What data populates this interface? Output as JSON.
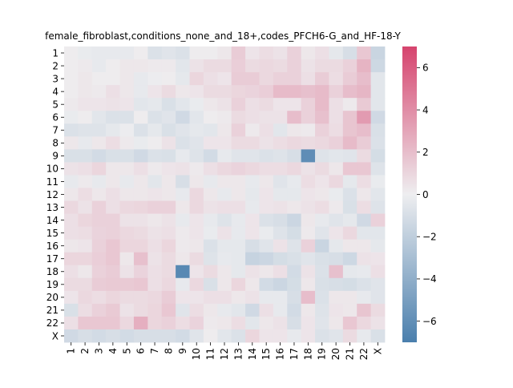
{
  "chart_data": {
    "type": "heatmap",
    "title": "female_fibroblast,conditions_none_and_18+,codes_PFCH6-G_and_HF-18-Y",
    "xlabel": "",
    "ylabel": "",
    "x_categories": [
      "1",
      "2",
      "3",
      "4",
      "5",
      "6",
      "7",
      "8",
      "9",
      "10",
      "11",
      "12",
      "13",
      "14",
      "15",
      "16",
      "17",
      "18",
      "19",
      "20",
      "21",
      "22",
      "X"
    ],
    "y_categories": [
      "1",
      "2",
      "3",
      "4",
      "5",
      "6",
      "7",
      "8",
      "9",
      "10",
      "11",
      "12",
      "13",
      "14",
      "15",
      "16",
      "17",
      "18",
      "19",
      "20",
      "21",
      "22",
      "X"
    ],
    "colorbar": {
      "vmin": -7,
      "vmax": 7,
      "ticks": [
        6,
        4,
        2,
        0,
        -2,
        -4,
        -6
      ],
      "tick_labels": [
        "6",
        "4",
        "2",
        "0",
        "−2",
        "−4",
        "−6"
      ],
      "colors": {
        "negative": "#4a7fad",
        "neutral": "#eeeef0",
        "positive": "#d6446e"
      }
    },
    "values": [
      [
        0.1,
        -0.2,
        -0.3,
        -0.3,
        -0.3,
        0.1,
        -0.8,
        -0.6,
        -0.8,
        0.1,
        0.1,
        0.3,
        1.4,
        0.4,
        0.7,
        0.5,
        1.2,
        0.3,
        0.6,
        -0.4,
        -1.0,
        1.6,
        -1.6
      ],
      [
        0.1,
        0.2,
        -0.3,
        0.1,
        0.3,
        0.3,
        0.2,
        0.2,
        -0.5,
        0.5,
        0.8,
        0.8,
        1.3,
        0.8,
        0.9,
        0.8,
        1.2,
        0.5,
        0.8,
        0.8,
        1.2,
        2.4,
        -1.4
      ],
      [
        0.1,
        0.3,
        0.1,
        0.1,
        0.3,
        -0.3,
        -0.1,
        0.1,
        -0.4,
        1.0,
        0.6,
        0.4,
        1.4,
        1.4,
        0.9,
        1.2,
        1.2,
        0.6,
        1.4,
        0.7,
        1.4,
        2.0,
        -0.5
      ],
      [
        0.1,
        0.3,
        0.2,
        0.6,
        0.3,
        -0.3,
        0.4,
        0.8,
        0.3,
        0.4,
        0.8,
        0.8,
        1.0,
        1.1,
        1.3,
        2.1,
        2.1,
        1.9,
        2.1,
        1.2,
        2.0,
        2.3,
        -0.5
      ],
      [
        0.2,
        0.4,
        0.4,
        0.5,
        0.4,
        -0.5,
        -0.4,
        -0.9,
        -0.5,
        -0.2,
        0.3,
        0.5,
        1.2,
        0.6,
        0.8,
        0.4,
        0.4,
        1.2,
        2.1,
        0.6,
        0.2,
        1.5,
        -0.5
      ],
      [
        -0.2,
        0.1,
        -0.5,
        -0.8,
        -0.8,
        0.1,
        -0.8,
        -0.6,
        -1.3,
        -0.5,
        0.1,
        0.2,
        0.8,
        0.6,
        0.5,
        0.5,
        2.0,
        1.2,
        1.9,
        0.6,
        1.7,
        3.4,
        -1.3
      ],
      [
        -0.8,
        -0.7,
        -0.7,
        -0.4,
        -0.1,
        -0.8,
        -0.4,
        -0.9,
        -0.6,
        -0.4,
        -0.5,
        0.3,
        1.2,
        0.2,
        0.6,
        -0.5,
        0.3,
        0.2,
        1.2,
        0.7,
        1.7,
        2.0,
        -0.9
      ],
      [
        0.3,
        -0.3,
        0.3,
        0.7,
        0.2,
        -0.2,
        0.1,
        0.5,
        -0.8,
        -0.6,
        0.4,
        0.4,
        0.8,
        0.8,
        0.5,
        0.7,
        0.9,
        0.8,
        0.9,
        1.2,
        2.1,
        1.4,
        -0.8
      ],
      [
        -0.9,
        -0.9,
        -1.2,
        -0.9,
        -0.9,
        -1.3,
        -0.8,
        -0.9,
        -0.3,
        -0.7,
        -1.2,
        -0.3,
        -0.6,
        -0.6,
        -0.8,
        -0.7,
        -1.0,
        -6.1,
        -0.7,
        -0.5,
        -0.6,
        0.8,
        -1.1
      ],
      [
        0.5,
        0.6,
        1.0,
        0.3,
        0.3,
        0.6,
        0.2,
        0.4,
        0.5,
        0.2,
        0.6,
        0.9,
        1.1,
        0.9,
        0.7,
        0.7,
        0.9,
        0.5,
        0.8,
        0.3,
        1.6,
        1.6,
        -0.7
      ],
      [
        -0.3,
        0.2,
        -0.3,
        0.3,
        -0.3,
        0.3,
        -0.5,
        0.3,
        -1.0,
        0.3,
        -0.3,
        0.3,
        0.3,
        -0.3,
        0.3,
        -0.6,
        -0.3,
        0.7,
        0.4,
        0.9,
        -0.4,
        0.7,
        -0.2
      ],
      [
        0.3,
        0.7,
        0.3,
        0.6,
        0.3,
        0.3,
        0.4,
        0.3,
        -0.3,
        0.9,
        0.3,
        -0.3,
        0.3,
        -0.4,
        0.4,
        -0.4,
        -0.4,
        0.4,
        0.3,
        -0.2,
        -0.8,
        0.3,
        -0.5
      ],
      [
        0.9,
        0.5,
        1.2,
        0.6,
        0.9,
        1.0,
        1.2,
        1.2,
        0.3,
        0.9,
        0.5,
        0.6,
        0.6,
        -0.3,
        0.4,
        0.5,
        0.3,
        0.5,
        0.7,
        0.2,
        -0.9,
        0.7,
        -0.7
      ],
      [
        0.6,
        1.0,
        1.2,
        1.2,
        0.5,
        0.5,
        0.3,
        0.5,
        -0.3,
        0.4,
        -0.3,
        -0.7,
        -0.3,
        0.4,
        -0.8,
        -1.0,
        -1.5,
        0.3,
        -0.3,
        -0.6,
        -0.4,
        -1.3,
        1.2
      ],
      [
        0.6,
        0.7,
        1.1,
        1.2,
        0.9,
        0.8,
        0.5,
        0.6,
        0.2,
        0.4,
        -0.2,
        0.5,
        -0.3,
        0.4,
        -0.2,
        -0.7,
        -1.1,
        0.2,
        -0.6,
        0.4,
        0.9,
        -0.5,
        -0.5
      ],
      [
        0.3,
        0.4,
        1.2,
        1.6,
        1.0,
        1.0,
        0.6,
        1.0,
        0.2,
        0.3,
        -0.8,
        -0.4,
        -0.4,
        -1.0,
        -0.6,
        0.5,
        -0.7,
        1.2,
        -1.6,
        -0.4,
        0.3,
        0.3,
        -0.4
      ],
      [
        1.0,
        1.0,
        1.3,
        1.6,
        0.3,
        1.9,
        0.5,
        0.8,
        0.3,
        0.8,
        -0.7,
        -0.3,
        -0.4,
        -1.7,
        -1.5,
        -1.1,
        -0.9,
        -0.6,
        -0.9,
        -1.0,
        -1.4,
        0.5,
        0.4
      ],
      [
        0.6,
        0.3,
        1.2,
        1.4,
        0.5,
        1.1,
        0.6,
        0.8,
        -6.4,
        0.4,
        0.8,
        0.3,
        -0.4,
        0.5,
        0.3,
        0.6,
        -1.2,
        0.5,
        -0.8,
        1.9,
        -0.4,
        -0.3,
        0.6
      ],
      [
        0.8,
        0.8,
        1.4,
        1.5,
        1.5,
        1.6,
        0.6,
        0.9,
        -0.3,
        0.9,
        -0.9,
        0.3,
        1.0,
        0.3,
        -1.2,
        -1.5,
        -1.1,
        0.3,
        -0.9,
        -1.0,
        -1.1,
        -0.8,
        -0.6
      ],
      [
        0.4,
        0.9,
        0.7,
        1.0,
        0.8,
        0.8,
        0.9,
        1.4,
        0.4,
        0.4,
        0.6,
        0.6,
        0.3,
        0.5,
        -0.3,
        -0.3,
        -1.0,
        2.0,
        -0.8,
        0.3,
        0.3,
        -0.3,
        -0.6
      ],
      [
        -0.9,
        0.7,
        1.2,
        1.5,
        0.5,
        0.8,
        1.0,
        1.6,
        -0.6,
        0.7,
        0.3,
        -0.3,
        -0.5,
        -1.3,
        0.6,
        -0.3,
        -1.2,
        0.3,
        -0.7,
        0.4,
        0.3,
        1.7,
        0.8
      ],
      [
        0.6,
        1.6,
        1.6,
        1.6,
        0.9,
        2.6,
        1.0,
        1.2,
        0.7,
        1.1,
        0.2,
        0.3,
        0.7,
        -0.5,
        0.3,
        0.5,
        -1.0,
        0.4,
        -0.6,
        0.3,
        1.6,
        0.9,
        0.5
      ],
      [
        -1.3,
        -1.0,
        -1.2,
        -1.0,
        -1.2,
        -1.0,
        -1.0,
        -1.0,
        -1.2,
        -0.6,
        0.1,
        -0.5,
        -0.8,
        1.0,
        0.4,
        0.4,
        -0.3,
        0.4,
        -0.8,
        -0.6,
        0.8,
        -0.3,
        -0.9
      ]
    ]
  }
}
